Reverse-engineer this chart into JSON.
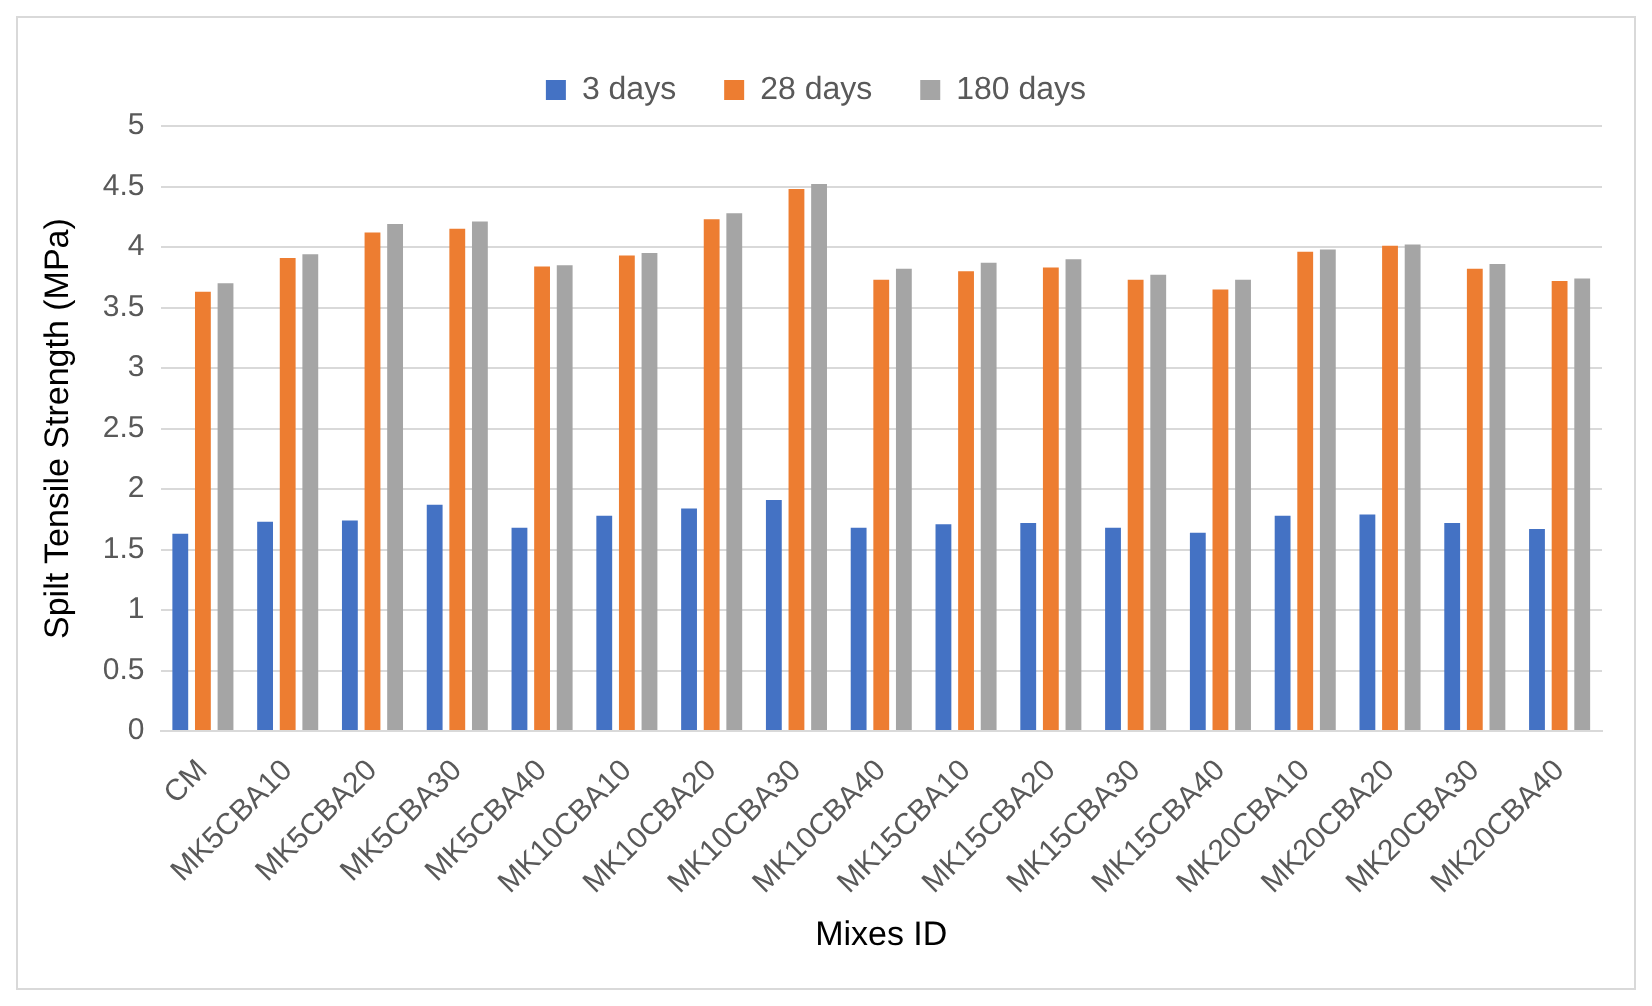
{
  "chart_data": {
    "type": "bar",
    "xlabel": "Mixes ID",
    "ylabel": "Spilt Tensile Strength (MPa)",
    "categories": [
      "CM",
      "MK5CBA10",
      "MK5CBA20",
      "MK5CBA30",
      "MK5CBA40",
      "MK10CBA10",
      "MK10CBA20",
      "MK10CBA30",
      "MK10CBA40",
      "MK15CBA10",
      "MK15CBA20",
      "MK15CBA30",
      "MK15CBA40",
      "MK20CBA10",
      "MK20CBA20",
      "MK20CBA30",
      "MK20CBA40"
    ],
    "series": [
      {
        "name": "3 days",
        "color": "#4472c4",
        "values": [
          1.63,
          1.73,
          1.74,
          1.87,
          1.68,
          1.78,
          1.84,
          1.91,
          1.68,
          1.71,
          1.72,
          1.68,
          1.64,
          1.78,
          1.79,
          1.72,
          1.67
        ]
      },
      {
        "name": "28 days",
        "color": "#ed7d31",
        "values": [
          3.63,
          3.91,
          4.12,
          4.15,
          3.84,
          3.93,
          4.23,
          4.48,
          3.73,
          3.8,
          3.83,
          3.73,
          3.65,
          3.96,
          4.01,
          3.82,
          3.72
        ]
      },
      {
        "name": "180 days",
        "color": "#a5a5a5",
        "values": [
          3.7,
          3.94,
          4.19,
          4.21,
          3.85,
          3.95,
          4.28,
          4.52,
          3.82,
          3.87,
          3.9,
          3.77,
          3.73,
          3.98,
          4.02,
          3.86,
          3.74
        ]
      }
    ],
    "ylim": [
      0,
      5
    ],
    "yticks": [
      0,
      0.5,
      1,
      1.5,
      2,
      2.5,
      3,
      3.5,
      4,
      4.5,
      5
    ],
    "grid": "y",
    "legend": "top"
  }
}
